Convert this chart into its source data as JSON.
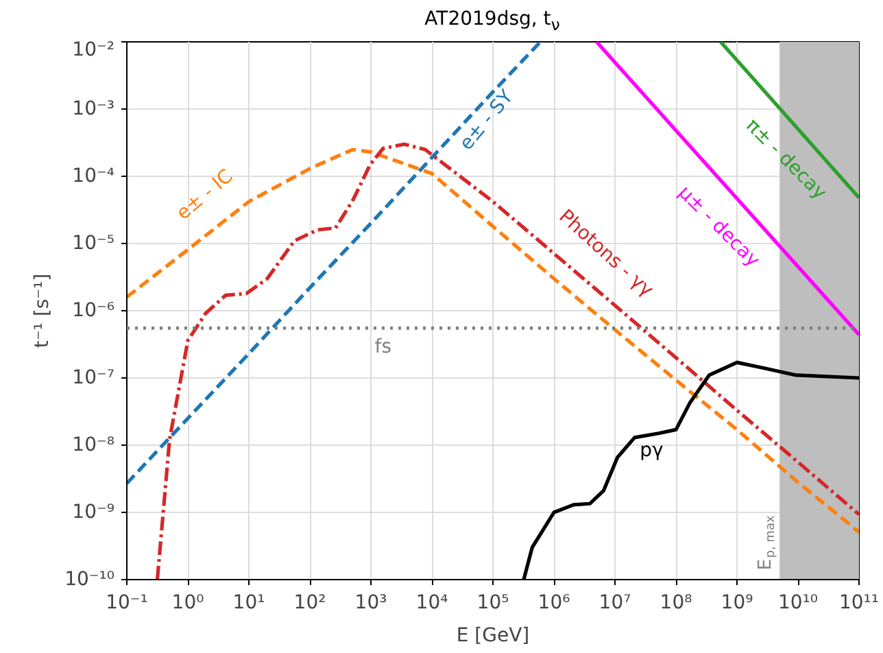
{
  "chart_data": {
    "type": "line",
    "title": "AT2019dsg, t$_{ν}$",
    "xlabel": "E [GeV]",
    "ylabel": "t⁻¹ [s⁻¹]",
    "log": "xy",
    "grid": true,
    "xlim": [
      0.1,
      100000000000.0
    ],
    "ylim": [
      1e-10,
      0.01
    ],
    "xticks": [
      {
        "value": 0.1,
        "label": "10⁻¹"
      },
      {
        "value": 1,
        "label": "10⁰"
      },
      {
        "value": 10,
        "label": "10¹"
      },
      {
        "value": 100,
        "label": "10²"
      },
      {
        "value": 1000,
        "label": "10³"
      },
      {
        "value": 10000,
        "label": "10⁴"
      },
      {
        "value": 100000,
        "label": "10⁵"
      },
      {
        "value": 1000000,
        "label": "10⁶"
      },
      {
        "value": 10000000,
        "label": "10⁷"
      },
      {
        "value": 100000000,
        "label": "10⁸"
      },
      {
        "value": 1000000000,
        "label": "10⁹"
      },
      {
        "value": 10000000000,
        "label": "10¹⁰"
      },
      {
        "value": 100000000000,
        "label": "10¹¹"
      }
    ],
    "yticks": [
      {
        "value": 1e-10,
        "label": "10⁻¹⁰"
      },
      {
        "value": 1e-09,
        "label": "10⁻⁹"
      },
      {
        "value": 1e-08,
        "label": "10⁻⁸"
      },
      {
        "value": 1e-07,
        "label": "10⁻⁷"
      },
      {
        "value": 1e-06,
        "label": "10⁻⁶"
      },
      {
        "value": 1e-05,
        "label": "10⁻⁵"
      },
      {
        "value": 0.0001,
        "label": "10⁻⁴"
      },
      {
        "value": 0.001,
        "label": "10⁻³"
      },
      {
        "value": 0.01,
        "label": "10⁻²"
      }
    ],
    "series": [
      {
        "name": "e± - SY",
        "color": "#1f77b4",
        "line_style": "dashed",
        "x": [
          0.1,
          1,
          10,
          100,
          1000,
          10000,
          100000,
          600000
        ],
        "values": [
          2.7e-09,
          2.5e-08,
          2.3e-07,
          2.2e-06,
          2e-05,
          0.00019,
          0.0018,
          0.01
        ]
      },
      {
        "name": "e± - IC",
        "color": "#ff7f0e",
        "line_style": "dashed",
        "x": [
          0.1,
          1,
          10,
          100,
          500,
          1000,
          10000,
          100000,
          1000000,
          10000000,
          100000000,
          1000000000,
          10000000000,
          100000000000
        ],
        "values": [
          1.6e-06,
          8.1e-06,
          4.2e-05,
          0.00013,
          0.00025,
          0.00023,
          0.00011,
          1.8e-05,
          3e-06,
          5.2e-07,
          9.3e-08,
          1.7e-08,
          2.8e-09,
          5.1e-10
        ]
      },
      {
        "name": "Photons - γγ",
        "color": "#d62728",
        "line_style": "dashdot",
        "x": [
          0.316,
          0.389,
          0.501,
          1,
          1.95,
          4.17,
          9.12,
          20,
          56,
          135,
          263,
          513,
          977,
          1585,
          3548,
          7762,
          100000,
          1000000,
          10000000,
          100000000,
          1000000000,
          10000000000,
          100000000000
        ],
        "values": [
          1e-10,
          8.5e-10,
          1.2e-08,
          3.6e-07,
          9.1e-07,
          1.7e-06,
          1.8e-06,
          3e-06,
          1.1e-05,
          1.6e-05,
          1.7e-05,
          4.5e-05,
          0.00015,
          0.00026,
          0.0003,
          0.00025,
          4.2e-05,
          7.1e-06,
          1.2e-06,
          2e-07,
          3.3e-08,
          5.6e-09,
          9.3e-10
        ]
      },
      {
        "name": "pγ",
        "color": "#000000",
        "line_style": "solid",
        "x": [
          320000,
          440000,
          1000000,
          2100000,
          3900000,
          6500000,
          11000000,
          21000000,
          52000000,
          100000000,
          170000000,
          350000000,
          1000000000,
          2800000000,
          9300000000,
          100000000000
        ],
        "values": [
          1e-10,
          3e-10,
          1e-09,
          1.3e-09,
          1.35e-09,
          2.1e-09,
          6.6e-09,
          1.3e-08,
          1.5e-08,
          1.7e-08,
          4.3e-08,
          1.1e-07,
          1.7e-07,
          1.4e-07,
          1.1e-07,
          1e-07
        ]
      },
      {
        "name": "μ± - decay",
        "color": "#ff00ff",
        "line_style": "solid",
        "x": [
          5000000,
          100000000000
        ],
        "values": [
          0.01,
          4.4e-07
        ]
      },
      {
        "name": "π± - decay",
        "color": "#2ca02c",
        "line_style": "solid",
        "x": [
          540000000,
          100000000000
        ],
        "values": [
          0.01,
          4.8e-05
        ]
      }
    ],
    "ref_lines": [
      {
        "axis": "y",
        "value": 5.5e-07,
        "label": "fs",
        "color": "#808080",
        "line_style": "dotted"
      }
    ],
    "bands": [
      {
        "axis": "x",
        "from": 5000000000,
        "to": 100000000000,
        "label": "E$_{p, max}$",
        "color": "#bebebe"
      }
    ]
  }
}
